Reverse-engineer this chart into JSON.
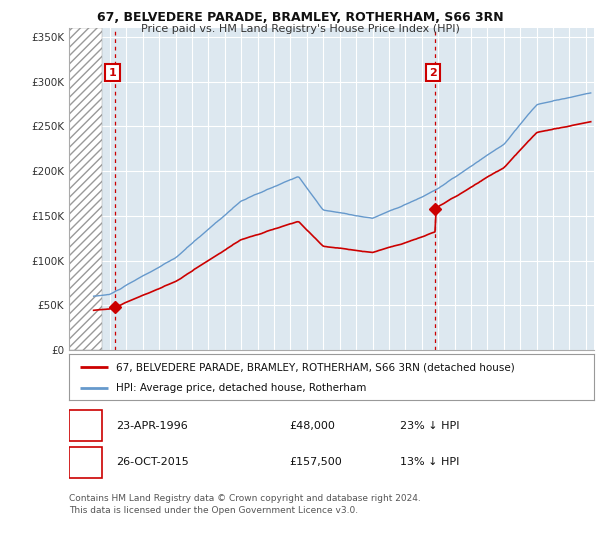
{
  "title1": "67, BELVEDERE PARADE, BRAMLEY, ROTHERHAM, S66 3RN",
  "title2": "Price paid vs. HM Land Registry's House Price Index (HPI)",
  "sale1_date": 1996.31,
  "sale1_price": 48000,
  "sale1_label": "1",
  "sale2_date": 2015.82,
  "sale2_price": 157500,
  "sale2_label": "2",
  "hpi_line_color": "#6699cc",
  "price_line_color": "#cc0000",
  "dashed_line_color": "#cc0000",
  "annotation1_box_color": "#cc0000",
  "annotation2_box_color": "#cc0000",
  "legend1_label": "67, BELVEDERE PARADE, BRAMLEY, ROTHERHAM, S66 3RN (detached house)",
  "legend2_label": "HPI: Average price, detached house, Rotherham",
  "footer": "Contains HM Land Registry data © Crown copyright and database right 2024.\nThis data is licensed under the Open Government Licence v3.0.",
  "ylim": [
    0,
    360000
  ],
  "xlim_left": 1993.5,
  "xlim_right": 2025.5,
  "hatch_end": 1995.5,
  "background_color": "#ffffff",
  "plot_bg_color": "#dde8f0"
}
